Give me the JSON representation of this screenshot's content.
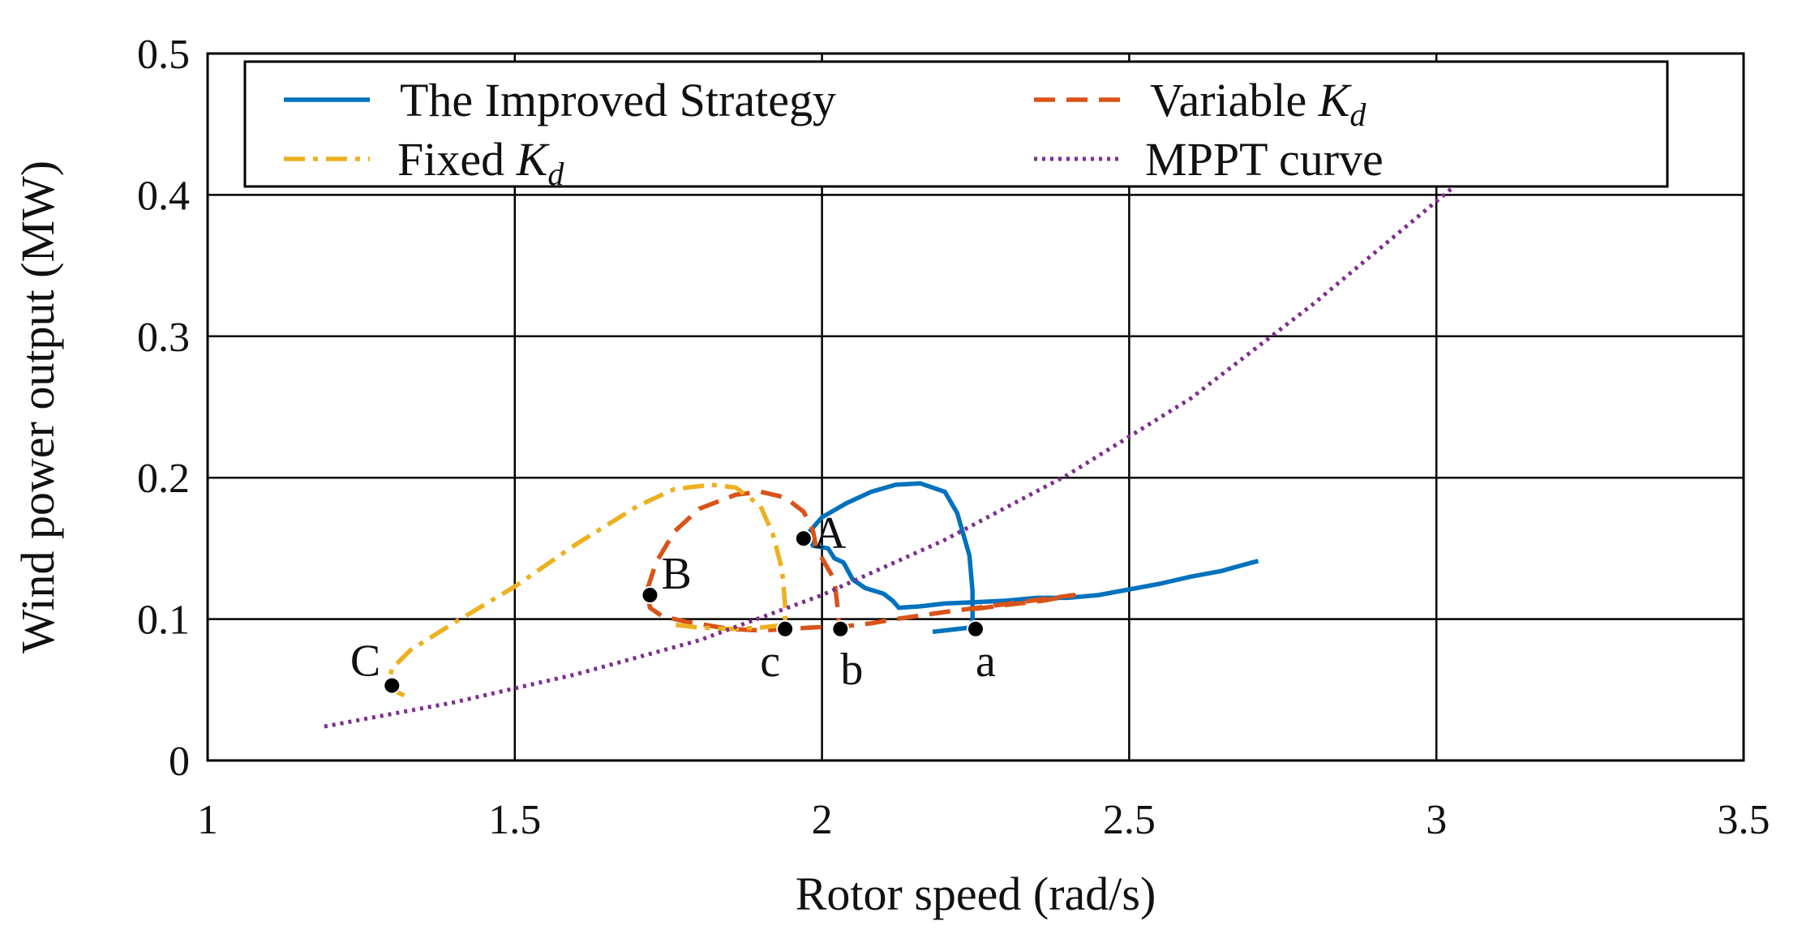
{
  "chart_data": {
    "type": "line",
    "title": "",
    "xlabel": "Rotor speed (rad/s)",
    "ylabel": "Wind power output (MW)",
    "xlim": [
      1,
      3.5
    ],
    "ylim": [
      0,
      0.5
    ],
    "xticks": [
      1,
      1.5,
      2,
      2.5,
      3,
      3.5
    ],
    "xtick_labels": [
      "1",
      "1.5",
      "2",
      "2.5",
      "3",
      "3.5"
    ],
    "yticks": [
      0,
      0.1,
      0.2,
      0.3,
      0.4,
      0.5
    ],
    "ytick_labels": [
      "0",
      "0.1",
      "0.2",
      "0.3",
      "0.4",
      "0.5"
    ],
    "grid": true,
    "legend_position": "top",
    "series": [
      {
        "name": "The Improved Strategy",
        "name_main": "The Improved Strategy",
        "name_sub": "",
        "color": "#0072BD",
        "style": "solid",
        "points": [
          [
            2.18,
            0.091
          ],
          [
            2.2,
            0.092
          ],
          [
            2.24,
            0.094
          ],
          [
            2.245,
            0.094
          ],
          [
            2.245,
            0.12
          ],
          [
            2.24,
            0.145
          ],
          [
            2.22,
            0.175
          ],
          [
            2.2,
            0.19
          ],
          [
            2.16,
            0.196
          ],
          [
            2.12,
            0.195
          ],
          [
            2.08,
            0.19
          ],
          [
            2.04,
            0.182
          ],
          [
            2.0,
            0.172
          ],
          [
            1.98,
            0.162
          ],
          [
            1.985,
            0.152
          ],
          [
            2.01,
            0.15
          ],
          [
            2.02,
            0.143
          ],
          [
            2.035,
            0.14
          ],
          [
            2.05,
            0.128
          ],
          [
            2.07,
            0.122
          ],
          [
            2.085,
            0.12
          ],
          [
            2.1,
            0.118
          ],
          [
            2.115,
            0.113
          ],
          [
            2.125,
            0.108
          ],
          [
            2.16,
            0.109
          ],
          [
            2.2,
            0.111
          ],
          [
            2.25,
            0.112
          ],
          [
            2.3,
            0.113
          ],
          [
            2.35,
            0.115
          ],
          [
            2.4,
            0.115
          ],
          [
            2.45,
            0.117
          ],
          [
            2.5,
            0.121
          ],
          [
            2.55,
            0.125
          ],
          [
            2.6,
            0.13
          ],
          [
            2.65,
            0.134
          ],
          [
            2.7,
            0.14
          ],
          [
            2.71,
            0.141
          ]
        ]
      },
      {
        "name": "Variable Kd",
        "name_main": "Variable ",
        "name_sub": "d",
        "color": "#D95319",
        "style": "dashed",
        "points": [
          [
            2.245,
            0.107
          ],
          [
            2.3,
            0.11
          ],
          [
            2.36,
            0.113
          ],
          [
            2.41,
            0.117
          ],
          [
            2.2,
            0.105
          ],
          [
            2.12,
            0.1
          ],
          [
            2.08,
            0.097
          ],
          [
            2.04,
            0.095
          ],
          [
            1.98,
            0.094
          ],
          [
            1.95,
            0.093
          ],
          [
            1.9,
            0.092
          ],
          [
            1.85,
            0.093
          ],
          [
            1.78,
            0.098
          ],
          [
            1.74,
            0.102
          ],
          [
            1.72,
            0.108
          ],
          [
            1.715,
            0.12
          ],
          [
            1.73,
            0.14
          ],
          [
            1.76,
            0.162
          ],
          [
            1.8,
            0.178
          ],
          [
            1.86,
            0.188
          ],
          [
            1.9,
            0.19
          ],
          [
            1.94,
            0.186
          ],
          [
            1.97,
            0.176
          ],
          [
            1.985,
            0.163
          ],
          [
            1.99,
            0.152
          ],
          [
            2.0,
            0.143
          ],
          [
            2.02,
            0.128
          ],
          [
            2.025,
            0.11
          ],
          [
            2.027,
            0.097
          ]
        ]
      },
      {
        "name": "Fixed Kd",
        "name_main": "Fixed ",
        "name_sub": "d",
        "color": "#EDB120",
        "style": "dashdot",
        "points": [
          [
            1.32,
            0.046
          ],
          [
            1.305,
            0.049
          ],
          [
            1.295,
            0.055
          ],
          [
            1.3,
            0.065
          ],
          [
            1.33,
            0.078
          ],
          [
            1.4,
            0.097
          ],
          [
            1.5,
            0.123
          ],
          [
            1.6,
            0.153
          ],
          [
            1.7,
            0.18
          ],
          [
            1.76,
            0.192
          ],
          [
            1.82,
            0.195
          ],
          [
            1.86,
            0.193
          ],
          [
            1.9,
            0.18
          ],
          [
            1.92,
            0.16
          ],
          [
            1.935,
            0.135
          ],
          [
            1.94,
            0.11
          ],
          [
            1.94,
            0.096
          ],
          [
            1.9,
            0.094
          ],
          [
            1.85,
            0.093
          ],
          [
            1.8,
            0.094
          ],
          [
            1.76,
            0.096
          ]
        ]
      },
      {
        "name": "MPPT curve",
        "name_main": "MPPT curve",
        "name_sub": "",
        "color": "#7E2F8E",
        "style": "dotted",
        "points": [
          [
            1.19,
            0.024
          ],
          [
            1.4,
            0.041
          ],
          [
            1.6,
            0.061
          ],
          [
            1.8,
            0.085
          ],
          [
            2.0,
            0.117
          ],
          [
            2.2,
            0.156
          ],
          [
            2.4,
            0.202
          ],
          [
            2.6,
            0.256
          ],
          [
            2.8,
            0.323
          ],
          [
            3.04,
            0.41
          ]
        ]
      }
    ],
    "labeled_points": [
      {
        "label": "A",
        "x": 1.97,
        "y": 0.157
      },
      {
        "label": "B",
        "x": 1.72,
        "y": 0.117
      },
      {
        "label": "C",
        "x": 1.3,
        "y": 0.053
      },
      {
        "label": "a",
        "x": 2.25,
        "y": 0.093
      },
      {
        "label": "b",
        "x": 2.03,
        "y": 0.093
      },
      {
        "label": "c",
        "x": 1.94,
        "y": 0.093
      }
    ],
    "legend_symbol": "K"
  }
}
